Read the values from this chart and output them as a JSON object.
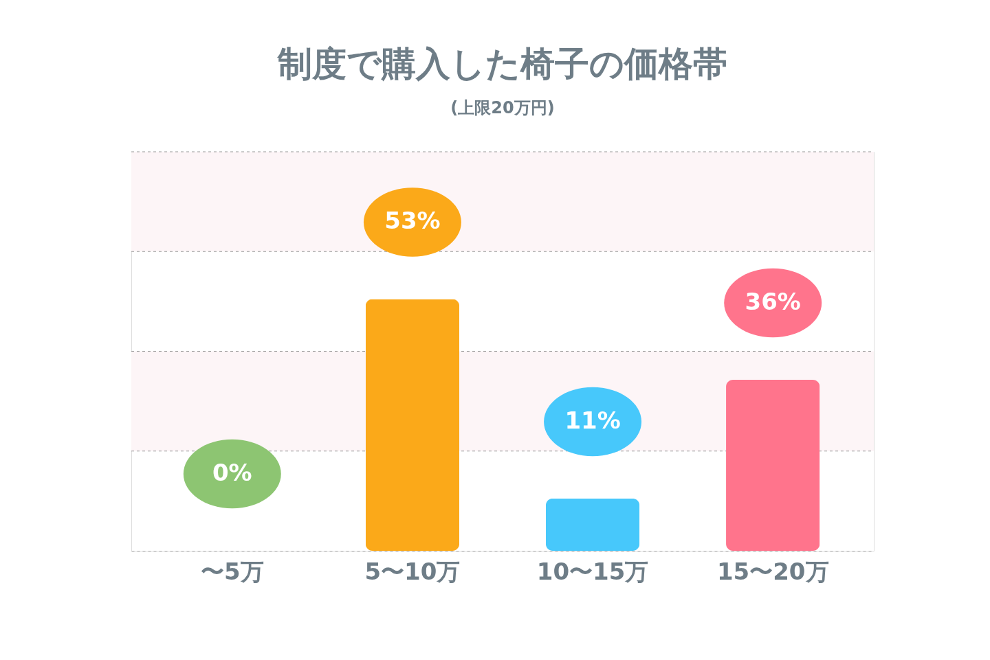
{
  "chart_data": {
    "type": "bar",
    "title": "制度で購入した椅子の価格帯",
    "subtitle": "(上限20万円)",
    "categories": [
      "〜5万",
      "5〜10万",
      "10〜15万",
      "15〜20万"
    ],
    "values": [
      0,
      53,
      11,
      36
    ],
    "colors": [
      "#8dc572",
      "#fba919",
      "#47c8fb",
      "#ff748c"
    ],
    "value_labels": [
      "0%",
      "53%",
      "11%",
      "36%"
    ],
    "ylim": [
      0,
      84
    ],
    "bands": [
      {
        "axis": "y",
        "from": 21,
        "to": 42,
        "color": "#fdf5f7"
      },
      {
        "axis": "y",
        "from": 63,
        "to": 84,
        "color": "#fdf5f7"
      }
    ]
  }
}
